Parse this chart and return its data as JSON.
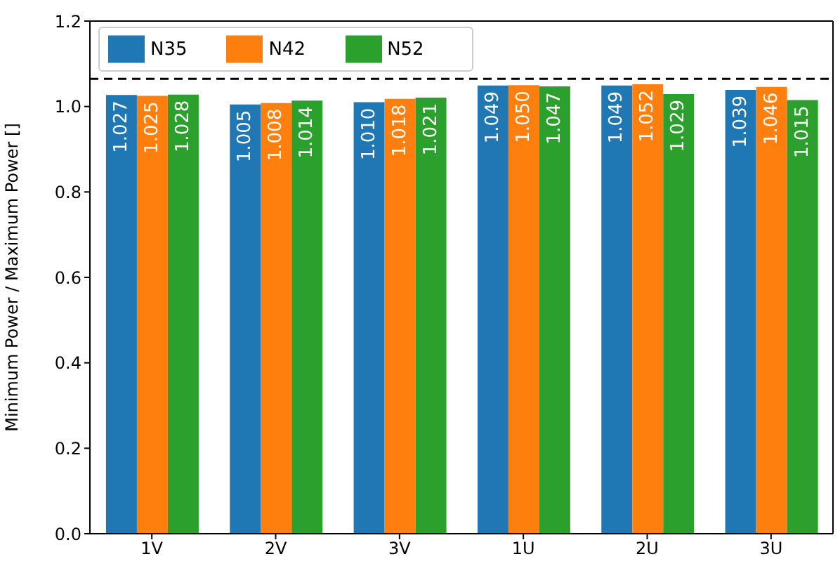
{
  "chart_data": {
    "type": "bar",
    "ylabel": "Minimum Power / Maximum Power []",
    "categories": [
      "1V",
      "2V",
      "3V",
      "1U",
      "2U",
      "3U"
    ],
    "series": [
      {
        "name": "N35",
        "color": "#1f77b4",
        "values": [
          1.027,
          1.005,
          1.01,
          1.049,
          1.049,
          1.039
        ],
        "value_labels": [
          "1.027",
          "1.005",
          "1.010",
          "1.049",
          "1.049",
          "1.039"
        ]
      },
      {
        "name": "N42",
        "color": "#ff7f0e",
        "values": [
          1.025,
          1.008,
          1.018,
          1.05,
          1.052,
          1.046
        ],
        "value_labels": [
          "1.025",
          "1.008",
          "1.018",
          "1.050",
          "1.052",
          "1.046"
        ]
      },
      {
        "name": "N52",
        "color": "#2ca02c",
        "values": [
          1.028,
          1.014,
          1.021,
          1.047,
          1.029,
          1.015
        ],
        "value_labels": [
          "1.028",
          "1.014",
          "1.021",
          "1.047",
          "1.029",
          "1.015"
        ]
      }
    ],
    "ylim": [
      0,
      1.2
    ],
    "yticks": [
      {
        "value": 0,
        "label": "0.0"
      },
      {
        "value": 0.2,
        "label": "0.2"
      },
      {
        "value": 0.4,
        "label": "0.4"
      },
      {
        "value": 0.6,
        "label": "0.6"
      },
      {
        "value": 0.8,
        "label": "0.8"
      },
      {
        "value": 1.0,
        "label": "1.0"
      },
      {
        "value": 1.2,
        "label": "1.2"
      }
    ],
    "ref_lines": [
      {
        "axis": "y",
        "value": 1.065,
        "color": "#000000",
        "line_style": "dashed"
      }
    ],
    "legend": "top left"
  }
}
